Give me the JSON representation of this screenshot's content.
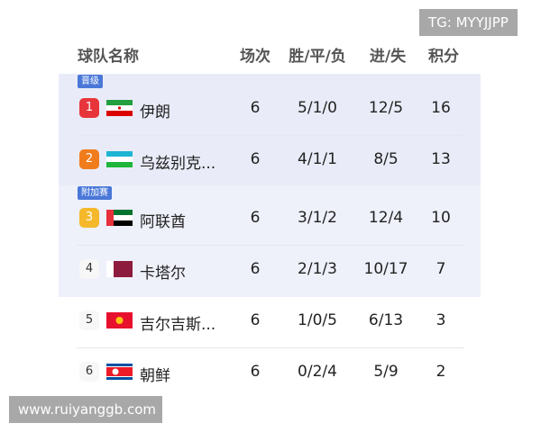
{
  "header": {
    "team": "球队名称",
    "played": "场次",
    "wdl": "胜/平/负",
    "goals": "进/失",
    "points": "积分"
  },
  "groups": {
    "qualified": "晋级",
    "playoff": "附加赛"
  },
  "colors": {
    "rank1": "#e8353b",
    "rank2": "#f07c1c",
    "rank3": "#f5b82a",
    "tag": "#4a78d8"
  },
  "rows": [
    {
      "rank": "1",
      "flag": "iran-flag",
      "name": "伊朗",
      "played": "6",
      "wdl": "5/1/0",
      "goals": "12/5",
      "points": "16"
    },
    {
      "rank": "2",
      "flag": "uzbekistan-flag",
      "name": "乌兹别克...",
      "played": "6",
      "wdl": "4/1/1",
      "goals": "8/5",
      "points": "13"
    },
    {
      "rank": "3",
      "flag": "uae-flag",
      "name": "阿联酋",
      "played": "6",
      "wdl": "3/1/2",
      "goals": "12/4",
      "points": "10"
    },
    {
      "rank": "4",
      "flag": "qatar-flag",
      "name": "卡塔尔",
      "played": "6",
      "wdl": "2/1/3",
      "goals": "10/17",
      "points": "7"
    },
    {
      "rank": "5",
      "flag": "kyrgyzstan-flag",
      "name": "吉尔吉斯...",
      "played": "6",
      "wdl": "1/0/5",
      "goals": "6/13",
      "points": "3"
    },
    {
      "rank": "6",
      "flag": "north-korea-flag",
      "name": "朝鲜",
      "played": "6",
      "wdl": "0/2/4",
      "goals": "5/9",
      "points": "2"
    }
  ],
  "watermarks": {
    "tg": "TG: MYYJJPP",
    "site": "www.ruiyanggb.com"
  }
}
